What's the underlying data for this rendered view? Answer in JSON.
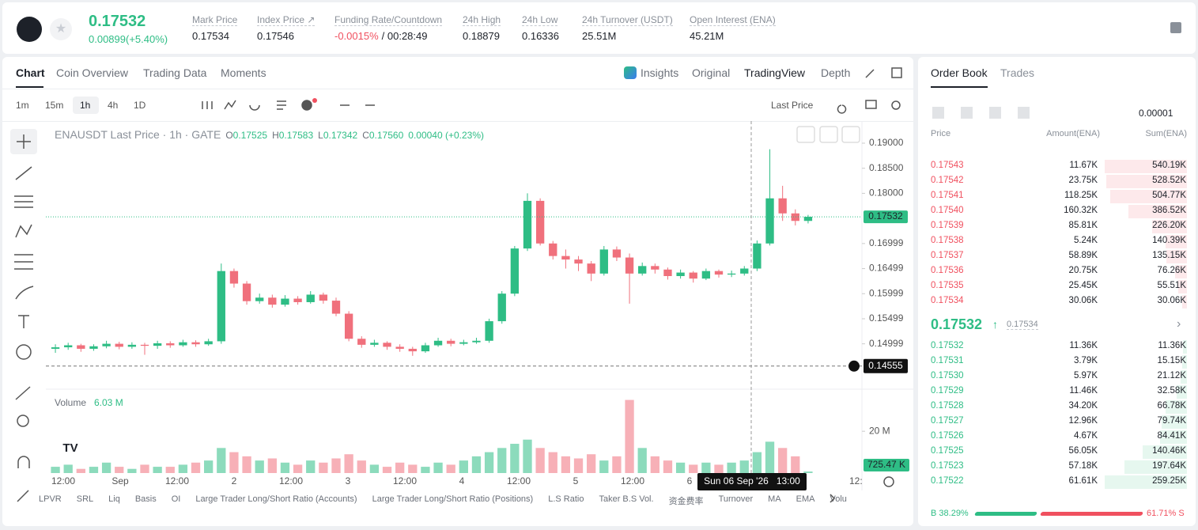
{
  "header": {
    "price": "0.17532",
    "change": "0.00899(+5.40%)",
    "stats": [
      {
        "label": "Mark Price",
        "value": "0.17534"
      },
      {
        "label": "Index Price ↗",
        "value": "0.17546"
      },
      {
        "label": "Funding Rate/Countdown",
        "value": "-0.0015%",
        "extra": "/ 00:28:49"
      },
      {
        "label": "24h High",
        "value": "0.18879"
      },
      {
        "label": "24h Low",
        "value": "0.16336"
      },
      {
        "label": "24h Turnover (USDT)",
        "value": "25.51M"
      },
      {
        "label": "Open Interest (ENA)",
        "value": "45.21M"
      }
    ]
  },
  "tabs": {
    "left": [
      "Chart",
      "Coin Overview",
      "Trading Data",
      "Moments"
    ],
    "right": [
      "Insights",
      "Original",
      "TradingView",
      "Depth"
    ]
  },
  "toolbar": {
    "intervals": [
      "1m",
      "15m",
      "1h",
      "4h",
      "1D"
    ],
    "price_type": "Last Price"
  },
  "legend": {
    "title": "ENAUSDT Last Price · 1h · GATE",
    "items": [
      {
        "label": "O",
        "value": "0.17525"
      },
      {
        "label": "H",
        "value": "0.17583"
      },
      {
        "label": "L",
        "value": "0.17342"
      },
      {
        "label": "C",
        "value": "0.17560"
      }
    ],
    "change": "0.00040 (+0.23%)"
  },
  "chart_data": {
    "type": "candlestick",
    "open": [
      0.149,
      0.1493,
      0.1497,
      0.149,
      0.1495,
      0.15,
      0.1494,
      0.1498,
      0.1496,
      0.1501,
      0.1497,
      0.1503,
      0.1499,
      0.1505,
      0.1645,
      0.162,
      0.1585,
      0.1592,
      0.1578,
      0.159,
      0.1583,
      0.1598,
      0.1586,
      0.156,
      0.151,
      0.1498,
      0.1502,
      0.1494,
      0.149,
      0.1485,
      0.1497,
      0.1506,
      0.15,
      0.1503,
      0.1506,
      0.1545,
      0.16,
      0.169,
      0.1785,
      0.17,
      0.1675,
      0.1668,
      0.166,
      0.164,
      0.1688,
      0.1672,
      0.164,
      0.1655,
      0.1648,
      0.1635,
      0.1642,
      0.163,
      0.1645,
      0.1638,
      0.164,
      0.165,
      0.17,
      0.179,
      0.176,
      0.1745
    ],
    "high": [
      0.1499,
      0.1502,
      0.15,
      0.1499,
      0.1506,
      0.1504,
      0.1503,
      0.1502,
      0.1506,
      0.1505,
      0.1508,
      0.1507,
      0.151,
      0.166,
      0.165,
      0.1625,
      0.16,
      0.1598,
      0.1597,
      0.1595,
      0.1605,
      0.1602,
      0.1592,
      0.1565,
      0.1515,
      0.1508,
      0.1505,
      0.1499,
      0.1494,
      0.1502,
      0.1512,
      0.151,
      0.1508,
      0.1512,
      0.155,
      0.1605,
      0.1695,
      0.18,
      0.179,
      0.1705,
      0.1688,
      0.1675,
      0.1665,
      0.1695,
      0.1694,
      0.168,
      0.1662,
      0.166,
      0.1652,
      0.1648,
      0.1645,
      0.165,
      0.1648,
      0.1646,
      0.1655,
      0.1706,
      0.18879,
      0.1815,
      0.1768,
      0.1757
    ],
    "low": [
      0.1482,
      0.1488,
      0.1484,
      0.1486,
      0.1491,
      0.1489,
      0.149,
      0.1478,
      0.149,
      0.1492,
      0.1494,
      0.1494,
      0.1496,
      0.15,
      0.1612,
      0.1578,
      0.158,
      0.1572,
      0.1574,
      0.1578,
      0.158,
      0.158,
      0.1555,
      0.1505,
      0.1492,
      0.1494,
      0.1488,
      0.1484,
      0.1476,
      0.1482,
      0.1494,
      0.1495,
      0.1497,
      0.15,
      0.1502,
      0.154,
      0.1595,
      0.1685,
      0.1696,
      0.1668,
      0.165,
      0.1645,
      0.1625,
      0.1636,
      0.1665,
      0.158,
      0.1636,
      0.164,
      0.1628,
      0.163,
      0.1622,
      0.1627,
      0.1632,
      0.1633,
      0.1636,
      0.1645,
      0.1696,
      0.1745,
      0.1736,
      0.174
    ],
    "close": [
      0.1493,
      0.1497,
      0.149,
      0.1495,
      0.15,
      0.1494,
      0.1498,
      0.1496,
      0.1501,
      0.1497,
      0.1503,
      0.1499,
      0.1505,
      0.1645,
      0.162,
      0.1585,
      0.1592,
      0.1578,
      0.159,
      0.1583,
      0.1598,
      0.1586,
      0.156,
      0.151,
      0.1498,
      0.1502,
      0.1494,
      0.149,
      0.1485,
      0.1497,
      0.1506,
      0.15,
      0.1503,
      0.1506,
      0.1545,
      0.16,
      0.169,
      0.1785,
      0.17,
      0.1675,
      0.1668,
      0.166,
      0.164,
      0.1688,
      0.1672,
      0.164,
      0.1655,
      0.1648,
      0.1635,
      0.1642,
      0.163,
      0.1645,
      0.1638,
      0.164,
      0.165,
      0.17,
      0.179,
      0.176,
      0.1745,
      0.17532
    ],
    "volume": [
      3,
      4,
      2,
      3,
      5,
      3,
      2,
      4,
      3,
      3,
      4,
      5,
      6,
      12,
      10,
      8,
      6,
      7,
      5,
      4,
      6,
      5,
      7,
      9,
      6,
      4,
      3,
      5,
      4,
      3,
      5,
      4,
      6,
      8,
      10,
      12,
      14,
      16,
      12,
      10,
      8,
      7,
      9,
      6,
      8,
      35,
      12,
      8,
      6,
      5,
      4,
      5,
      4,
      5,
      6,
      10,
      15,
      12,
      8,
      0.72547
    ],
    "volume_last_label": "725.47 K",
    "ylim": [
      0.14126,
      0.1941
    ],
    "yticks": [
      {
        "value": 0.19,
        "label": "0.19000"
      },
      {
        "value": 0.185,
        "label": "0.18500"
      },
      {
        "value": 0.18,
        "label": "0.18000"
      },
      {
        "value": 0.16999,
        "label": "0.16999"
      },
      {
        "value": 0.16499,
        "label": "0.16499"
      },
      {
        "value": 0.15999,
        "label": "0.15999"
      },
      {
        "value": 0.15499,
        "label": "0.15499"
      },
      {
        "value": 0.14999,
        "label": "0.14999"
      }
    ],
    "current_price": {
      "value": 0.17532,
      "label": "0.17532"
    },
    "crosshair_price": {
      "value": 0.14555,
      "label": "0.14555"
    },
    "crosshair_time": "Sun 06 Sep '26   13:00",
    "volume_title": "Volume",
    "volume_legend": "6.03 M",
    "volume_ylim": [
      0,
      39
    ],
    "volume_yticks": [
      {
        "value": 20,
        "label": "20 M"
      }
    ],
    "x_labels": [
      "12:00",
      "Sep",
      "12:00",
      "2",
      "12:00",
      "3",
      "12:00",
      "4",
      "12:00",
      "5",
      "12:00",
      "6"
    ],
    "x_label_cut": "12:",
    "up_color": "#2ebd85",
    "down_color": "#f0707c"
  },
  "indicators": [
    "LPVR",
    "SRL",
    "Liq",
    "Basis",
    "OI",
    "Large Trader Long/Short Ratio (Accounts)",
    "Large Trader Long/Short Ratio (Positions)",
    "L.S Ratio",
    "Taker B.S Vol.",
    "资金费率",
    "Turnover",
    "MA",
    "EMA",
    "Volu"
  ],
  "order_book": {
    "tabs": [
      "Order Book",
      "Trades"
    ],
    "precision": "0.00001",
    "columns": [
      "Price",
      "Amount(ENA)",
      "Sum(ENA)"
    ],
    "asks": [
      [
        "0.17543",
        "11.67K",
        "540.19K"
      ],
      [
        "0.17542",
        "23.75K",
        "528.52K"
      ],
      [
        "0.17541",
        "118.25K",
        "504.77K"
      ],
      [
        "0.17540",
        "160.32K",
        "386.52K"
      ],
      [
        "0.17539",
        "85.81K",
        "226.20K"
      ],
      [
        "0.17538",
        "5.24K",
        "140.39K"
      ],
      [
        "0.17537",
        "58.89K",
        "135.15K"
      ],
      [
        "0.17536",
        "20.75K",
        "76.26K"
      ],
      [
        "0.17535",
        "25.45K",
        "55.51K"
      ],
      [
        "0.17534",
        "30.06K",
        "30.06K"
      ]
    ],
    "last_price": "0.17532",
    "mark_price": "0.17534",
    "bids": [
      [
        "0.17532",
        "11.36K",
        "11.36K"
      ],
      [
        "0.17531",
        "3.79K",
        "15.15K"
      ],
      [
        "0.17530",
        "5.97K",
        "21.12K"
      ],
      [
        "0.17529",
        "11.46K",
        "32.58K"
      ],
      [
        "0.17528",
        "34.20K",
        "66.78K"
      ],
      [
        "0.17527",
        "12.96K",
        "79.74K"
      ],
      [
        "0.17526",
        "4.67K",
        "84.41K"
      ],
      [
        "0.17525",
        "56.05K",
        "140.46K"
      ],
      [
        "0.17523",
        "57.18K",
        "197.64K"
      ],
      [
        "0.17522",
        "61.61K",
        "259.25K"
      ]
    ],
    "buy_label": "B",
    "buy_ratio": "38.29%",
    "sell_ratio": "61.71%",
    "sell_label": "S"
  }
}
